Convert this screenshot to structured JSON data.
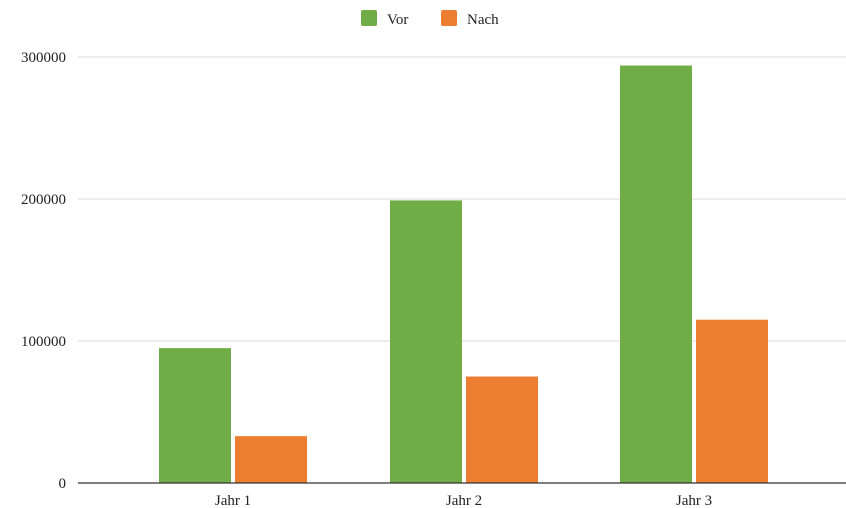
{
  "chart_data": {
    "type": "bar",
    "categories": [
      "Jahr 1",
      "Jahr 2",
      "Jahr 3"
    ],
    "series": [
      {
        "name": "Vor",
        "values": [
          95000,
          199000,
          294000
        ],
        "color": "#70AD47"
      },
      {
        "name": "Nach",
        "values": [
          33000,
          75000,
          115000
        ],
        "color": "#ED7D31"
      }
    ],
    "yticks": [
      0,
      100000,
      200000,
      300000
    ],
    "ylim": [
      0,
      300000
    ],
    "grid": true,
    "legend_position": "top-center",
    "title": "",
    "xlabel": "",
    "ylabel": ""
  }
}
